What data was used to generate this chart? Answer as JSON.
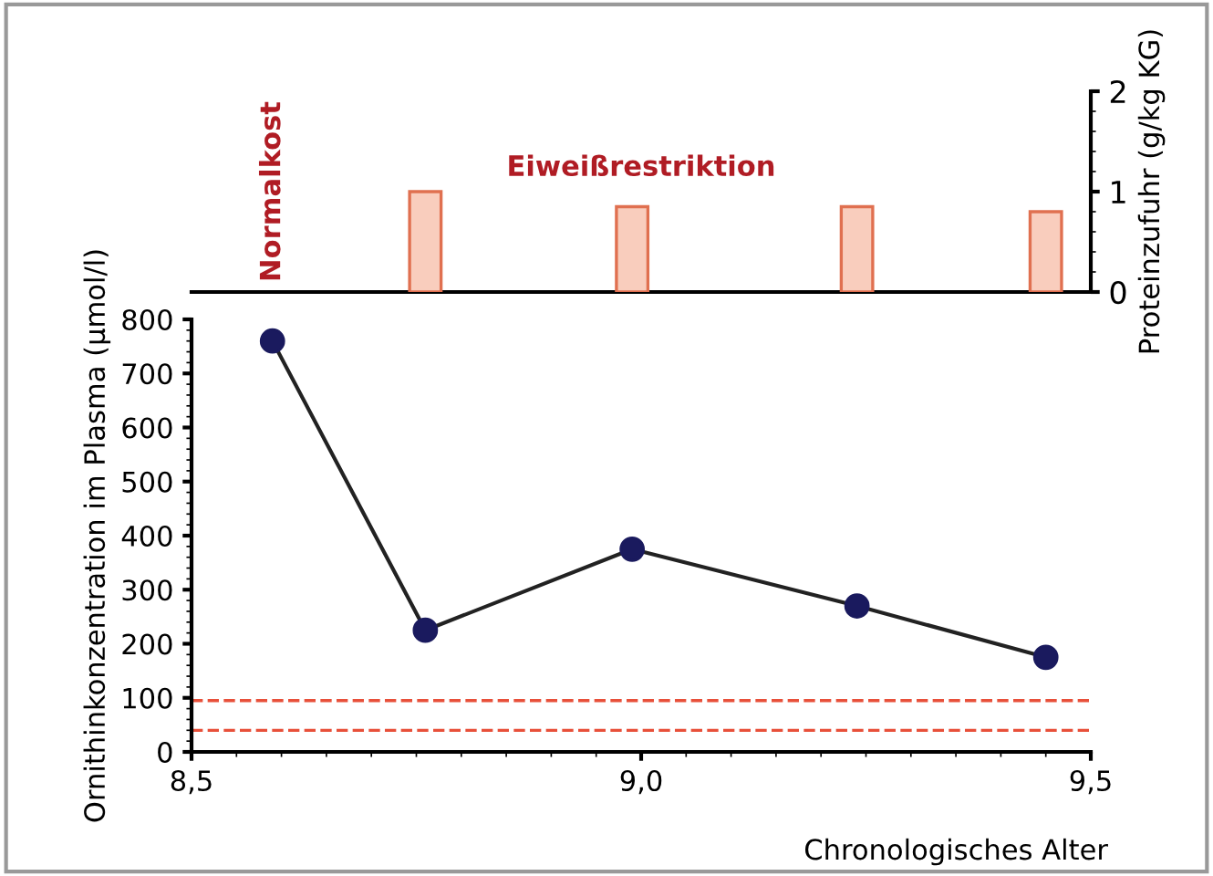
{
  "chart_data": [
    {
      "type": "bar",
      "x": [
        8.76,
        8.99,
        9.24,
        9.45
      ],
      "xlim": [
        8.5,
        9.5
      ],
      "y2lim": [
        0,
        2
      ],
      "y2ticks": [
        0,
        1,
        2
      ],
      "y2label": "Proteinzufuhr (g/kg KG)",
      "tick_labels": "y2",
      "series": [
        {
          "color": "#f9cdbd",
          "axis": "y2",
          "values": [
            1.0,
            0.85,
            0.85,
            0.8
          ]
        }
      ],
      "annotations": [
        "Normalkost",
        "Eiweißrestriktion"
      ]
    },
    {
      "type": "line",
      "x": [
        8.59,
        8.76,
        8.99,
        9.24,
        9.45
      ],
      "values": [
        760,
        225,
        375,
        270,
        175
      ],
      "color": "#1a1a5e",
      "marker": "circle",
      "line_style": "solid",
      "xlim": [
        8.5,
        9.5
      ],
      "xticks": [
        {
          "value": 8.5,
          "label": "8,5"
        },
        {
          "value": 9.0,
          "label": "9,0"
        },
        {
          "value": 9.5,
          "label": "9,5"
        }
      ],
      "ylim": [
        0,
        800
      ],
      "yticks": [
        0,
        100,
        200,
        300,
        400,
        500,
        600,
        700,
        800
      ],
      "xlabel": "Chronologisches Alter",
      "ylabel": "Ornithinkonzentration im Plasma (µmol/l)",
      "ref_lines": [
        {
          "axis": "y",
          "value": 95,
          "color": "#e8503a",
          "line_style": "dashed"
        },
        {
          "axis": "y",
          "value": 40,
          "color": "#e8503a",
          "line_style": "dashed"
        }
      ]
    }
  ]
}
